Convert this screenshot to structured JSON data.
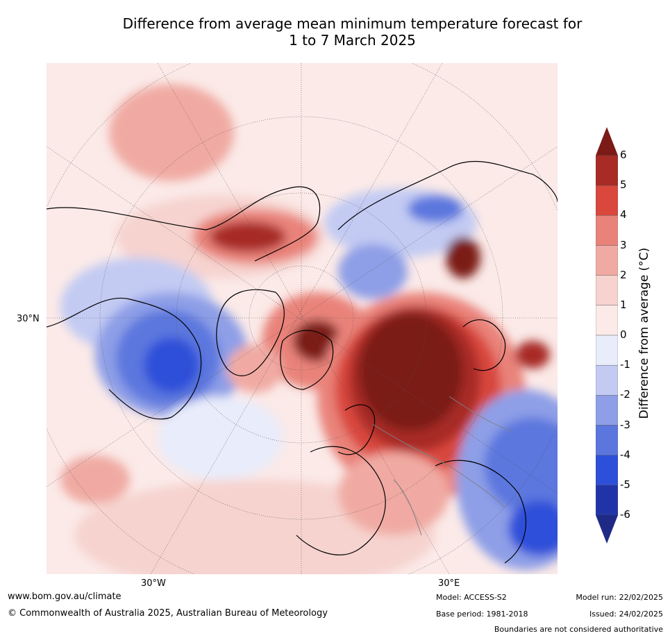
{
  "title_line1": "Difference from average mean minimum temperature forecast for",
  "title_line2": "1 to 7 March 2025",
  "map": {
    "lat_label": "30°N",
    "lon_labels": [
      "30°W",
      "30°E"
    ],
    "colors": {
      "land_outline": "#000000",
      "boundaries": "#808080",
      "graticule": "#555555"
    }
  },
  "colorbar": {
    "label": "Difference from average (°C)",
    "ticks": [
      "6",
      "5",
      "4",
      "3",
      "2",
      "1",
      "0",
      "-1",
      "-2",
      "-3",
      "-4",
      "-5",
      "-6"
    ],
    "bins_warm_to_cold": [
      "#7b1a16",
      "#a82b25",
      "#d9473d",
      "#e9837a",
      "#f0aaa3",
      "#f6d3cf",
      "#fbeae8",
      "#e8ecfb",
      "#c3cbf3",
      "#8e9fe7",
      "#5b77de",
      "#2e4fd9",
      "#2134a7",
      "#1f2a86"
    ]
  },
  "footer": {
    "url": "www.bom.gov.au/climate",
    "copyright": "© Commonwealth of Australia 2025, Australian Bureau of Meteorology",
    "model": "Model: ACCESS-S2",
    "base_period": "Base period: 1981-2018",
    "model_run": "Model run: 22/02/2025",
    "issued": "Issued: 24/02/2025",
    "disclaimer": "Boundaries are not considered authoritative"
  }
}
